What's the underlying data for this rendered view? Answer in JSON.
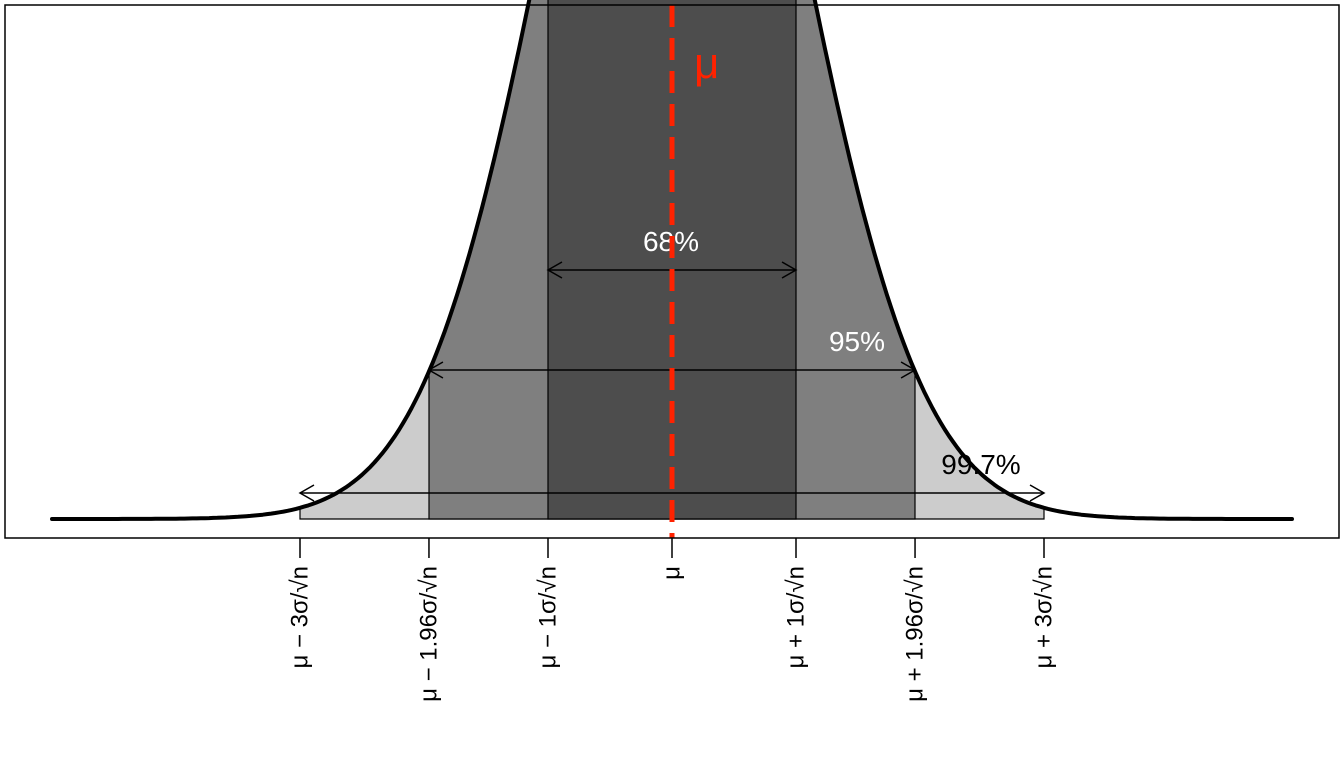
{
  "chart_data": {
    "type": "area",
    "title": "",
    "xlabel": "",
    "ylabel": "",
    "distribution": "normal",
    "x_unit": "standard errors (sigma/sqrt(n)) from the mean",
    "xlim": [
      -5,
      5
    ],
    "curve": {
      "mean": 0,
      "sd": 1
    },
    "mean_line": {
      "x": 0,
      "label": "μ",
      "color": "#ff2200",
      "style": "dashed"
    },
    "bands": [
      {
        "name": "99.7%",
        "label": "99.7%",
        "lower": -3,
        "upper": 3,
        "fill": "#cccccc",
        "label_color": "#000000"
      },
      {
        "name": "95%",
        "label": "95%",
        "lower": -1.96,
        "upper": 1.96,
        "fill": "#7f7f7f",
        "label_color": "#ffffff"
      },
      {
        "name": "68%",
        "label": "68%",
        "lower": -1,
        "upper": 1,
        "fill": "#4d4d4d",
        "label_color": "#ffffff"
      }
    ],
    "ticks": [
      {
        "x": -3,
        "label": "μ − 3σ/√n"
      },
      {
        "x": -1.96,
        "label": "μ − 1.96σ/√n"
      },
      {
        "x": -1,
        "label": "μ − 1σ/√n"
      },
      {
        "x": 0,
        "label": "μ"
      },
      {
        "x": 1,
        "label": "μ + 1σ/√n"
      },
      {
        "x": 1.96,
        "label": "μ + 1.96σ/√n"
      },
      {
        "x": 3,
        "label": "μ + 3σ/√n"
      }
    ],
    "grid": false,
    "legend": "none"
  }
}
